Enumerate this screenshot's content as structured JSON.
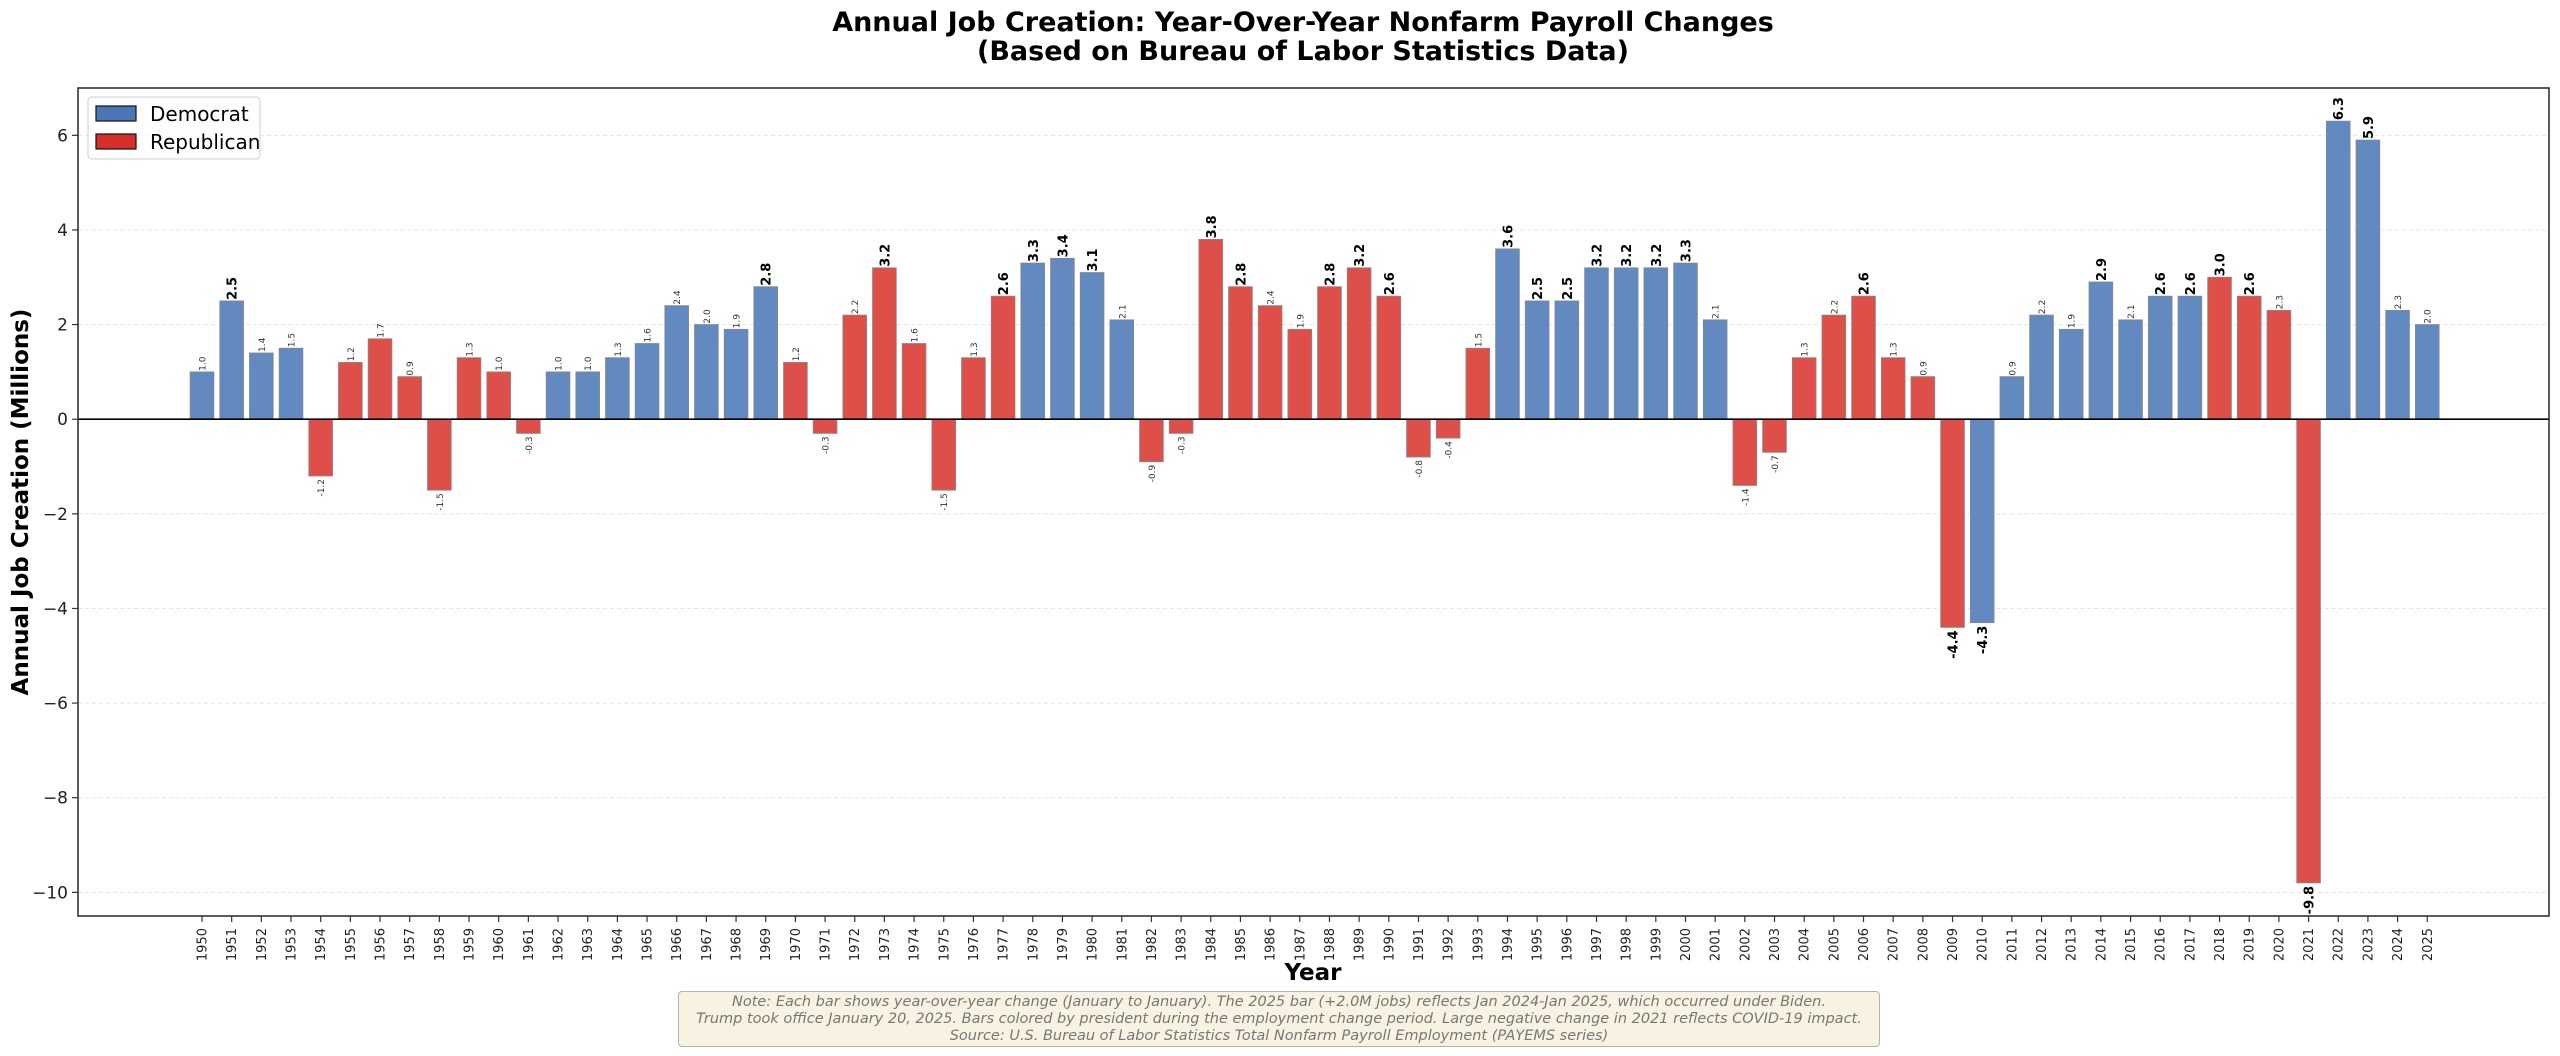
{
  "chart_data": {
    "type": "bar",
    "title": "Annual Job Creation: Year-Over-Year Nonfarm Payroll Changes",
    "subtitle": "(Based on Bureau of Labor Statistics Data)",
    "xlabel": "Year",
    "ylabel": "Annual Job Creation (Millions)",
    "ylim": [
      -10.5,
      7.0
    ],
    "yticks": [
      -10,
      -8,
      -6,
      -4,
      -2,
      0,
      2,
      4,
      6
    ],
    "ytick_labels": [
      "−10",
      "−8",
      "−6",
      "−4",
      "−2",
      "0",
      "2",
      "4",
      "6"
    ],
    "grid": "horizontal-dashed",
    "legend_position": "top-left",
    "legend": [
      {
        "name": "Democrat",
        "color": "#4a76b8"
      },
      {
        "name": "Republican",
        "color": "#d62f2a"
      }
    ],
    "colors": {
      "Democrat": "#6289c0",
      "Republican": "#de4f49"
    },
    "bold_label_threshold": 2.5,
    "categories": [
      "1950",
      "1951",
      "1952",
      "1953",
      "1954",
      "1955",
      "1956",
      "1957",
      "1958",
      "1959",
      "1960",
      "1961",
      "1962",
      "1963",
      "1964",
      "1965",
      "1966",
      "1967",
      "1968",
      "1969",
      "1970",
      "1971",
      "1972",
      "1973",
      "1974",
      "1975",
      "1976",
      "1977",
      "1978",
      "1979",
      "1980",
      "1981",
      "1982",
      "1983",
      "1984",
      "1985",
      "1986",
      "1987",
      "1988",
      "1989",
      "1990",
      "1991",
      "1992",
      "1993",
      "1994",
      "1995",
      "1996",
      "1997",
      "1998",
      "1999",
      "2000",
      "2001",
      "2002",
      "2003",
      "2004",
      "2005",
      "2006",
      "2007",
      "2008",
      "2009",
      "2010",
      "2011",
      "2012",
      "2013",
      "2014",
      "2015",
      "2016",
      "2017",
      "2018",
      "2019",
      "2020",
      "2021",
      "2022",
      "2023",
      "2024",
      "2025"
    ],
    "values": [
      1.0,
      2.5,
      1.4,
      1.5,
      -1.2,
      1.2,
      1.7,
      0.9,
      -1.5,
      1.3,
      1.0,
      -0.3,
      1.0,
      1.0,
      1.3,
      1.6,
      2.4,
      2.0,
      1.9,
      2.8,
      1.2,
      -0.3,
      2.2,
      3.2,
      1.6,
      -1.5,
      1.3,
      2.6,
      3.3,
      3.4,
      3.1,
      2.1,
      -0.9,
      -0.3,
      3.8,
      2.8,
      2.4,
      1.9,
      2.8,
      3.2,
      2.6,
      -0.8,
      -0.4,
      1.5,
      3.6,
      2.5,
      2.5,
      3.2,
      3.2,
      3.2,
      3.3,
      2.1,
      -1.4,
      -0.7,
      1.3,
      2.2,
      2.6,
      1.3,
      0.9,
      -4.4,
      -4.3,
      0.9,
      2.2,
      1.9,
      2.9,
      2.1,
      2.6,
      2.6,
      3.0,
      2.6,
      2.3,
      -9.8,
      6.3,
      5.9,
      2.3,
      2.0
    ],
    "value_labels": [
      "1.0",
      "2.5",
      "1.4",
      "1.5",
      "-1.2",
      "1.2",
      "1.7",
      "0.9",
      "-1.5",
      "1.3",
      "1.0",
      "-0.3",
      "1.0",
      "1.0",
      "1.3",
      "1.6",
      "2.4",
      "2.0",
      "1.9",
      "2.8",
      "1.2",
      "-0.3",
      "2.2",
      "3.2",
      "1.6",
      "-1.5",
      "1.3",
      "2.6",
      "3.3",
      "3.4",
      "3.1",
      "2.1",
      "-0.9",
      "-0.3",
      "3.8",
      "2.8",
      "2.4",
      "1.9",
      "2.8",
      "3.2",
      "2.6",
      "-0.8",
      "-0.4",
      "1.5",
      "3.6",
      "2.5",
      "2.5",
      "3.2",
      "3.2",
      "3.2",
      "3.3",
      "2.1",
      "-1.4",
      "-0.7",
      "1.3",
      "2.2",
      "2.6",
      "1.3",
      "0.9",
      "-4.4",
      "-4.3",
      "0.9",
      "2.2",
      "1.9",
      "2.9",
      "2.1",
      "2.6",
      "2.6",
      "3.0",
      "2.6",
      "2.3",
      "-9.8",
      "6.3",
      "5.9",
      "2.3",
      "2.0"
    ],
    "party": [
      "D",
      "D",
      "D",
      "D",
      "R",
      "R",
      "R",
      "R",
      "R",
      "R",
      "R",
      "R",
      "D",
      "D",
      "D",
      "D",
      "D",
      "D",
      "D",
      "D",
      "R",
      "R",
      "R",
      "R",
      "R",
      "R",
      "R",
      "R",
      "D",
      "D",
      "D",
      "D",
      "R",
      "R",
      "R",
      "R",
      "R",
      "R",
      "R",
      "R",
      "R",
      "R",
      "R",
      "R",
      "D",
      "D",
      "D",
      "D",
      "D",
      "D",
      "D",
      "D",
      "R",
      "R",
      "R",
      "R",
      "R",
      "R",
      "R",
      "R",
      "D",
      "D",
      "D",
      "D",
      "D",
      "D",
      "D",
      "D",
      "R",
      "R",
      "R",
      "R",
      "D",
      "D",
      "D",
      "D"
    ],
    "annotation": [
      "Note: Each bar shows year-over-year change (January to January). The 2025 bar (+2.0M jobs) reflects Jan 2024-Jan 2025, which occurred under Biden.",
      "Trump took office January 20, 2025. Bars colored by president during the employment change period. Large negative change in 2021 reflects COVID-19 impact.",
      "Source: U.S. Bureau of Labor Statistics Total Nonfarm Payroll Employment (PAYEMS series)"
    ]
  }
}
